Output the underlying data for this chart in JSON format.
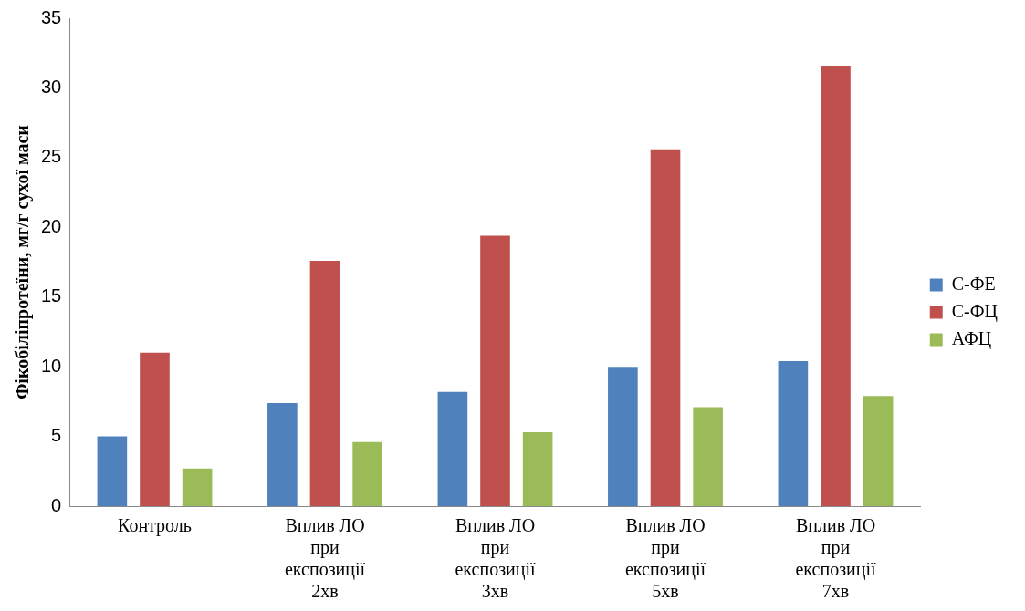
{
  "chart_data": {
    "type": "bar",
    "ylabel": "Фікобіліпротеїни, мг/г сухої маси",
    "categories": [
      "Контроль",
      "Вплив ЛО при експозиції 2хв",
      "Вплив ЛО при експозиції 3хв",
      "Вплив ЛО при експозиції 5хв",
      "Вплив ЛО при експозиції 7хв"
    ],
    "series": [
      {
        "name": "С-ФЕ",
        "color": "#4f81bd",
        "values": [
          5.0,
          7.4,
          8.2,
          10.0,
          10.4
        ]
      },
      {
        "name": "С-ФЦ",
        "color": "#c0504d",
        "values": [
          11.0,
          17.6,
          19.4,
          25.6,
          31.6
        ]
      },
      {
        "name": "АФЦ",
        "color": "#9bbb59",
        "values": [
          2.7,
          4.6,
          5.3,
          7.1,
          7.9
        ]
      }
    ],
    "ylim": [
      0,
      35
    ],
    "yticks": [
      0,
      5,
      10,
      15,
      20,
      25,
      30,
      35
    ],
    "grid": false,
    "legend": "right"
  }
}
